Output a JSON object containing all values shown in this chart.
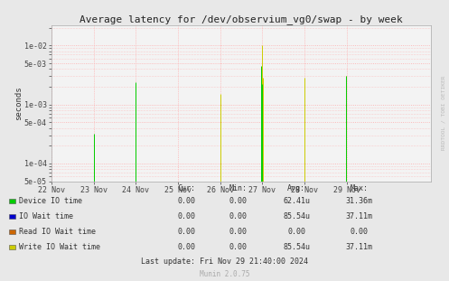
{
  "title": "Average latency for /dev/observium_vg0/swap - by week",
  "ylabel": "seconds",
  "background_color": "#e8e8e8",
  "plot_background": "#f3f3f3",
  "grid_color": "#ffaaaa",
  "xlim_start": 1732147200,
  "xlim_end": 1732924800,
  "ylim_min": 5e-05,
  "ylim_max": 0.022,
  "yticks": [
    5e-05,
    0.0001,
    0.0005,
    0.001,
    0.005,
    0.01
  ],
  "ytick_labels": [
    "5e-05",
    "1e-04",
    "5e-04",
    "1e-03",
    "5e-03",
    "1e-02"
  ],
  "xtick_labels": [
    "22 Nov",
    "23 Nov",
    "24 Nov",
    "25 Nov",
    "26 Nov",
    "27 Nov",
    "28 Nov",
    "29 Nov"
  ],
  "xtick_offsets": [
    0,
    86400,
    172800,
    259200,
    345600,
    432000,
    518400,
    604800
  ],
  "green_spikes": [
    [
      86000,
      0.00032
    ],
    [
      171000,
      0.0024
    ],
    [
      429000,
      0.0045
    ],
    [
      430500,
      0.0022
    ],
    [
      603000,
      0.0031
    ]
  ],
  "yellow_spikes": [
    [
      87500,
      0.0003
    ],
    [
      172500,
      0.0022
    ],
    [
      346000,
      0.0015
    ],
    [
      431500,
      0.01
    ],
    [
      433000,
      0.0028
    ],
    [
      518000,
      0.00285
    ],
    [
      604000,
      0.00305
    ]
  ],
  "legend_items": [
    {
      "label": "Device IO time",
      "color": "#00cc00"
    },
    {
      "label": "IO Wait time",
      "color": "#0000cc"
    },
    {
      "label": "Read IO Wait time",
      "color": "#cc6600"
    },
    {
      "label": "Write IO Wait time",
      "color": "#cccc00"
    }
  ],
  "table_headers": [
    "Cur:",
    "Min:",
    "Avg:",
    "Max:"
  ],
  "table_rows": [
    [
      "0.00",
      "0.00",
      "62.41u",
      "31.36m"
    ],
    [
      "0.00",
      "0.00",
      "85.54u",
      "37.11m"
    ],
    [
      "0.00",
      "0.00",
      "0.00",
      "0.00"
    ],
    [
      "0.00",
      "0.00",
      "85.54u",
      "37.11m"
    ]
  ],
  "last_update": "Last update: Fri Nov 29 21:40:00 2024",
  "munin_version": "Munin 2.0.75",
  "rrdtool_label": "RRDTOOL / TOBI OETIKER"
}
